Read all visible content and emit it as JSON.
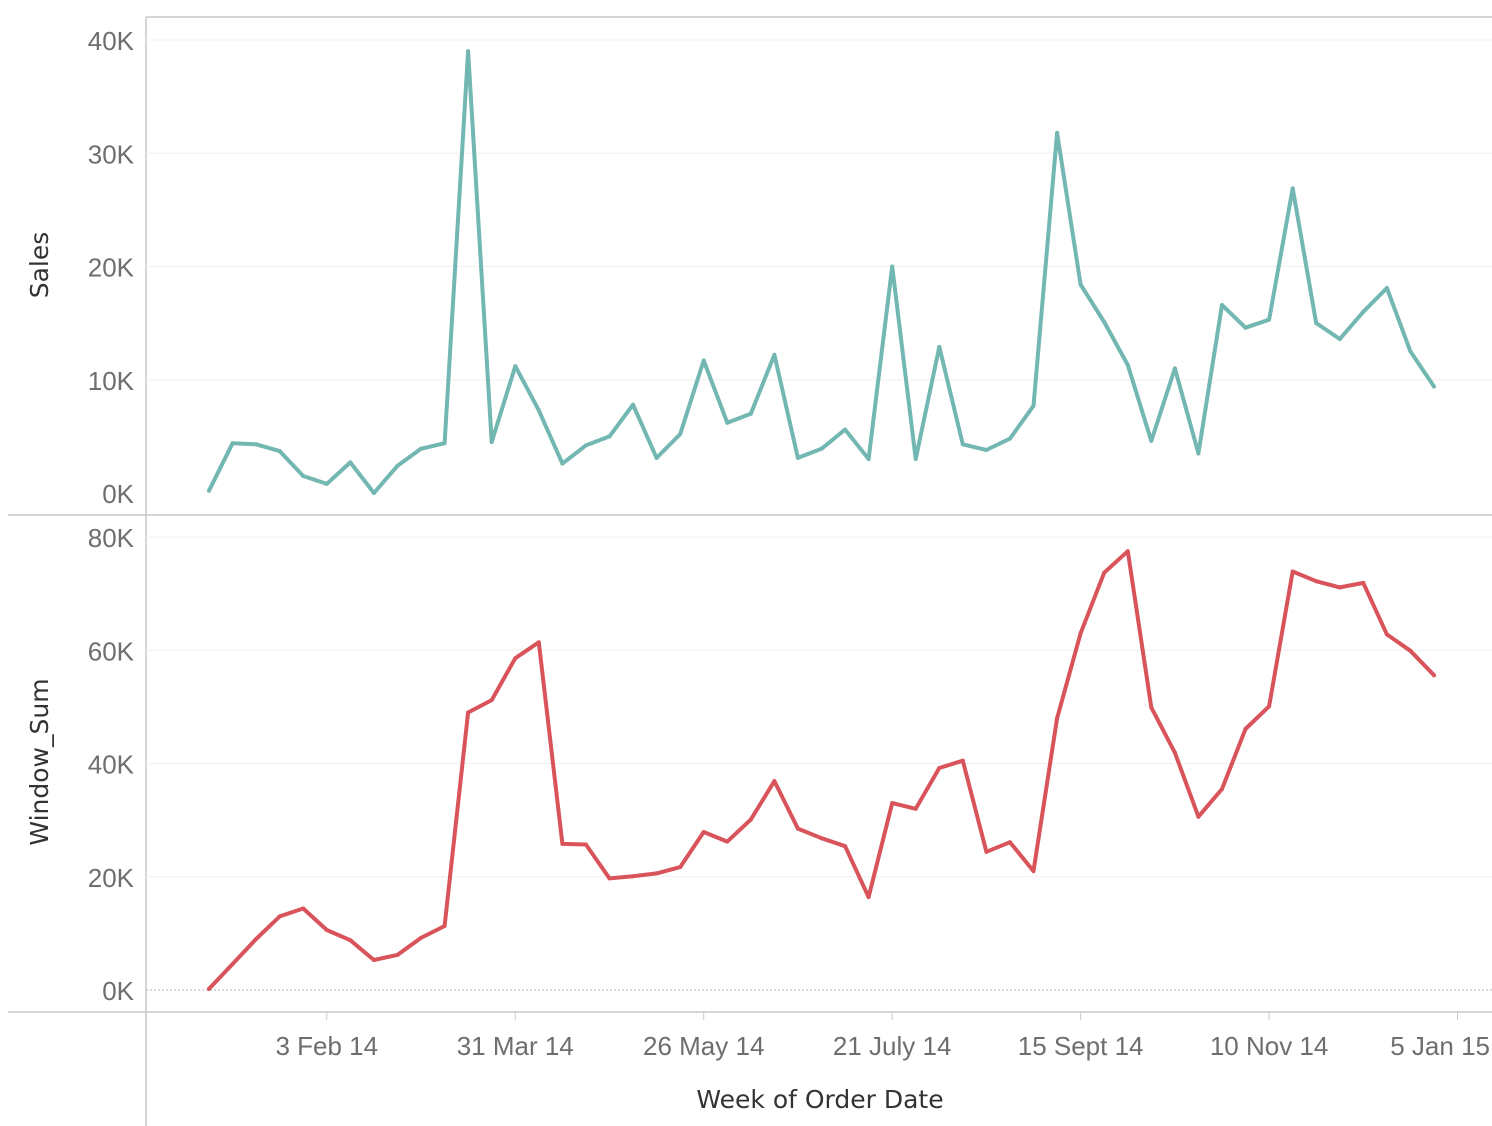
{
  "chart_data": {
    "type": "line",
    "xlabel": "Week of Order Date",
    "x_ticks": [
      "3 Feb 14",
      "31 Mar 14",
      "26 May 14",
      "21 July 14",
      "15 Sept 14",
      "10 Nov 14",
      "5 Jan 15"
    ],
    "x": [
      "30 Dec 13",
      "6 Jan 14",
      "13 Jan 14",
      "20 Jan 14",
      "27 Jan 14",
      "3 Feb 14",
      "10 Feb 14",
      "17 Feb 14",
      "24 Feb 14",
      "3 Mar 14",
      "10 Mar 14",
      "17 Mar 14",
      "24 Mar 14",
      "31 Mar 14",
      "7 Apr 14",
      "14 Apr 14",
      "21 Apr 14",
      "28 Apr 14",
      "5 May 14",
      "12 May 14",
      "19 May 14",
      "26 May 14",
      "2 Jun 14",
      "9 Jun 14",
      "16 Jun 14",
      "23 Jun 14",
      "30 Jun 14",
      "7 July 14",
      "14 July 14",
      "21 July 14",
      "28 July 14",
      "4 Aug 14",
      "11 Aug 14",
      "18 Aug 14",
      "25 Aug 14",
      "1 Sept 14",
      "8 Sept 14",
      "15 Sept 14",
      "22 Sept 14",
      "29 Sept 14",
      "6 Oct 14",
      "13 Oct 14",
      "20 Oct 14",
      "27 Oct 14",
      "3 Nov 14",
      "10 Nov 14",
      "17 Nov 14",
      "24 Nov 14",
      "1 Dec 14",
      "8 Dec 14",
      "15 Dec 14",
      "22 Dec 14",
      "29 Dec 14"
    ],
    "panels": [
      {
        "ylabel": "Sales",
        "y_ticks": [
          "0K",
          "10K",
          "20K",
          "30K",
          "40K"
        ],
        "ylim": [
          0,
          40000
        ],
        "color": "#72b7b2",
        "values": [
          200,
          4400,
          4300,
          3700,
          1500,
          800,
          2700,
          0,
          2400,
          3900,
          4400,
          39000,
          4500,
          11200,
          7300,
          2600,
          4200,
          5000,
          7800,
          3100,
          5200,
          11700,
          6200,
          7000,
          12200,
          3100,
          3900,
          5600,
          3000,
          20000,
          3000,
          12900,
          4300,
          3800,
          4800,
          7700,
          31800,
          18400,
          15100,
          11300,
          4600,
          11000,
          3500,
          16600,
          14600,
          15300,
          26900,
          15000,
          13600,
          16000,
          18100,
          12500,
          9400
        ]
      },
      {
        "ylabel": "Window_Sum",
        "y_ticks": [
          "0K",
          "20K",
          "40K",
          "60K",
          "80K"
        ],
        "ylim": [
          0,
          80000
        ],
        "color": "#d9545a",
        "values": [
          200,
          4600,
          9000,
          13000,
          14400,
          10600,
          8800,
          5300,
          6200,
          9200,
          11300,
          49000,
          51200,
          58600,
          61400,
          25800,
          25700,
          19700,
          20100,
          20600,
          21700,
          27900,
          26200,
          30100,
          36900,
          28500,
          26800,
          25400,
          16400,
          33000,
          32000,
          39200,
          40500,
          24400,
          26100,
          21000,
          48000,
          63000,
          73700,
          77500,
          49900,
          41900,
          30600,
          35500,
          46100,
          50100,
          73900,
          72200,
          71100,
          71900,
          62800,
          59900,
          55600
        ]
      }
    ]
  }
}
